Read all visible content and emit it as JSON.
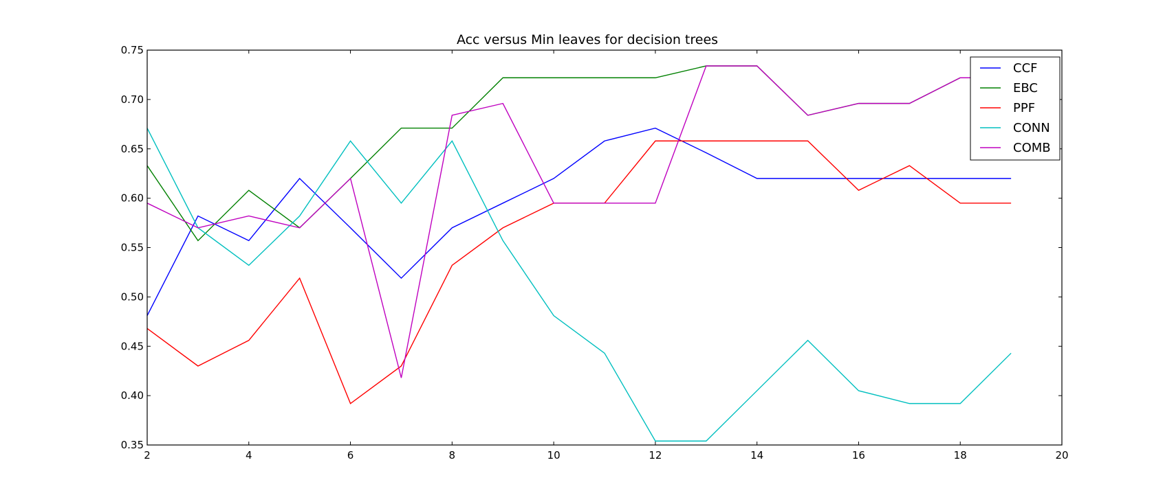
{
  "chart_data": {
    "type": "line",
    "title": "Acc versus Min leaves for decision trees",
    "xlabel": "",
    "ylabel": "",
    "xlim": [
      2,
      20
    ],
    "ylim": [
      0.35,
      0.75
    ],
    "xticks": [
      "2",
      "4",
      "6",
      "8",
      "10",
      "12",
      "14",
      "16",
      "18",
      "20"
    ],
    "yticks": [
      "0.35",
      "0.40",
      "0.45",
      "0.50",
      "0.55",
      "0.60",
      "0.65",
      "0.70",
      "0.75"
    ],
    "grid": false,
    "legend_position": "top-right",
    "x": [
      2,
      3,
      4,
      5,
      6,
      7,
      8,
      9,
      10,
      11,
      12,
      13,
      14,
      15,
      16,
      17,
      18,
      19
    ],
    "series": [
      {
        "name": "CCF",
        "color": "#0000ff",
        "values": [
          0.481,
          0.582,
          0.557,
          0.62,
          0.57,
          0.519,
          0.57,
          0.595,
          0.62,
          0.658,
          0.671,
          0.646,
          0.62,
          0.62,
          0.62,
          0.62,
          0.62,
          0.62
        ]
      },
      {
        "name": "EBC",
        "color": "#008000",
        "values": [
          0.633,
          0.557,
          0.608,
          0.57,
          0.62,
          0.671,
          0.671,
          0.722,
          0.722,
          0.722,
          0.722,
          0.734,
          0.734,
          0.684,
          0.696,
          0.696,
          0.722,
          0.722
        ]
      },
      {
        "name": "PPF",
        "color": "#ff0000",
        "values": [
          0.468,
          0.43,
          0.456,
          0.519,
          0.392,
          0.43,
          0.532,
          0.57,
          0.595,
          0.595,
          0.658,
          0.658,
          0.658,
          0.658,
          0.608,
          0.633,
          0.595,
          0.595
        ]
      },
      {
        "name": "CONN",
        "color": "#00bfbf",
        "values": [
          0.671,
          0.57,
          0.532,
          0.582,
          0.658,
          0.595,
          0.658,
          0.557,
          0.481,
          0.443,
          0.354,
          0.354,
          0.405,
          0.456,
          0.405,
          0.392,
          0.392,
          0.443
        ]
      },
      {
        "name": "COMB",
        "color": "#bf00bf",
        "values": [
          0.595,
          0.57,
          0.582,
          0.57,
          0.62,
          0.418,
          0.684,
          0.696,
          0.595,
          0.595,
          0.595,
          0.734,
          0.734,
          0.684,
          0.696,
          0.696,
          0.722,
          0.722
        ]
      }
    ]
  }
}
